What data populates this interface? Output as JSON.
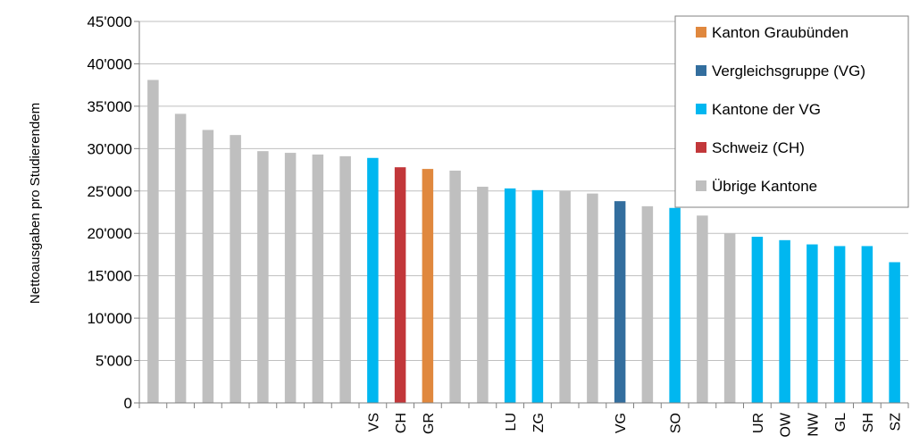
{
  "chart_data": {
    "type": "bar",
    "title": "",
    "xlabel": "",
    "ylabel": "Nettoausgaben  pro Studierendem",
    "ylim": [
      0,
      45000
    ],
    "yticks": [
      0,
      5000,
      10000,
      15000,
      20000,
      25000,
      30000,
      35000,
      40000,
      45000
    ],
    "ytick_labels": [
      "0",
      "5'000",
      "10'000",
      "15'000",
      "20'000",
      "25'000",
      "30'000",
      "35'000",
      "40'000",
      "45'000"
    ],
    "grid": "horizontal",
    "legend_position": "top-right",
    "colors": {
      "gr": "#E0883E",
      "vg": "#336E9E",
      "vg_cantons": "#00B7F0",
      "ch": "#C2373A",
      "other": "#BFBFBF"
    },
    "legend": [
      {
        "label": "Kanton Graubünden",
        "group": "gr"
      },
      {
        "label": "Vergleichsgruppe (VG)",
        "group": "vg"
      },
      {
        "label": "Kantone der VG",
        "group": "vg_cantons"
      },
      {
        "label": "Schweiz (CH)",
        "group": "ch"
      },
      {
        "label": "Übrige Kantone",
        "group": "other"
      }
    ],
    "bars": [
      {
        "label": "",
        "value": 38100,
        "group": "other"
      },
      {
        "label": "",
        "value": 34100,
        "group": "other"
      },
      {
        "label": "",
        "value": 32200,
        "group": "other"
      },
      {
        "label": "",
        "value": 31600,
        "group": "other"
      },
      {
        "label": "",
        "value": 29700,
        "group": "other"
      },
      {
        "label": "",
        "value": 29500,
        "group": "other"
      },
      {
        "label": "",
        "value": 29300,
        "group": "other"
      },
      {
        "label": "",
        "value": 29100,
        "group": "other"
      },
      {
        "label": "VS",
        "value": 28900,
        "group": "vg_cantons"
      },
      {
        "label": "CH",
        "value": 27800,
        "group": "ch"
      },
      {
        "label": "GR",
        "value": 27600,
        "group": "gr"
      },
      {
        "label": "",
        "value": 27400,
        "group": "other"
      },
      {
        "label": "",
        "value": 25500,
        "group": "other"
      },
      {
        "label": "LU",
        "value": 25300,
        "group": "vg_cantons"
      },
      {
        "label": "ZG",
        "value": 25100,
        "group": "vg_cantons"
      },
      {
        "label": "",
        "value": 25000,
        "group": "other"
      },
      {
        "label": "",
        "value": 24700,
        "group": "other"
      },
      {
        "label": "VG",
        "value": 23800,
        "group": "vg"
      },
      {
        "label": "",
        "value": 23200,
        "group": "other"
      },
      {
        "label": "SO",
        "value": 23000,
        "group": "vg_cantons"
      },
      {
        "label": "",
        "value": 22100,
        "group": "other"
      },
      {
        "label": "",
        "value": 20000,
        "group": "other"
      },
      {
        "label": "UR",
        "value": 19600,
        "group": "vg_cantons"
      },
      {
        "label": "OW",
        "value": 19200,
        "group": "vg_cantons"
      },
      {
        "label": "NW",
        "value": 18700,
        "group": "vg_cantons"
      },
      {
        "label": "GL",
        "value": 18500,
        "group": "vg_cantons"
      },
      {
        "label": "SH",
        "value": 18500,
        "group": "vg_cantons"
      },
      {
        "label": "SZ",
        "value": 16600,
        "group": "vg_cantons"
      }
    ]
  }
}
